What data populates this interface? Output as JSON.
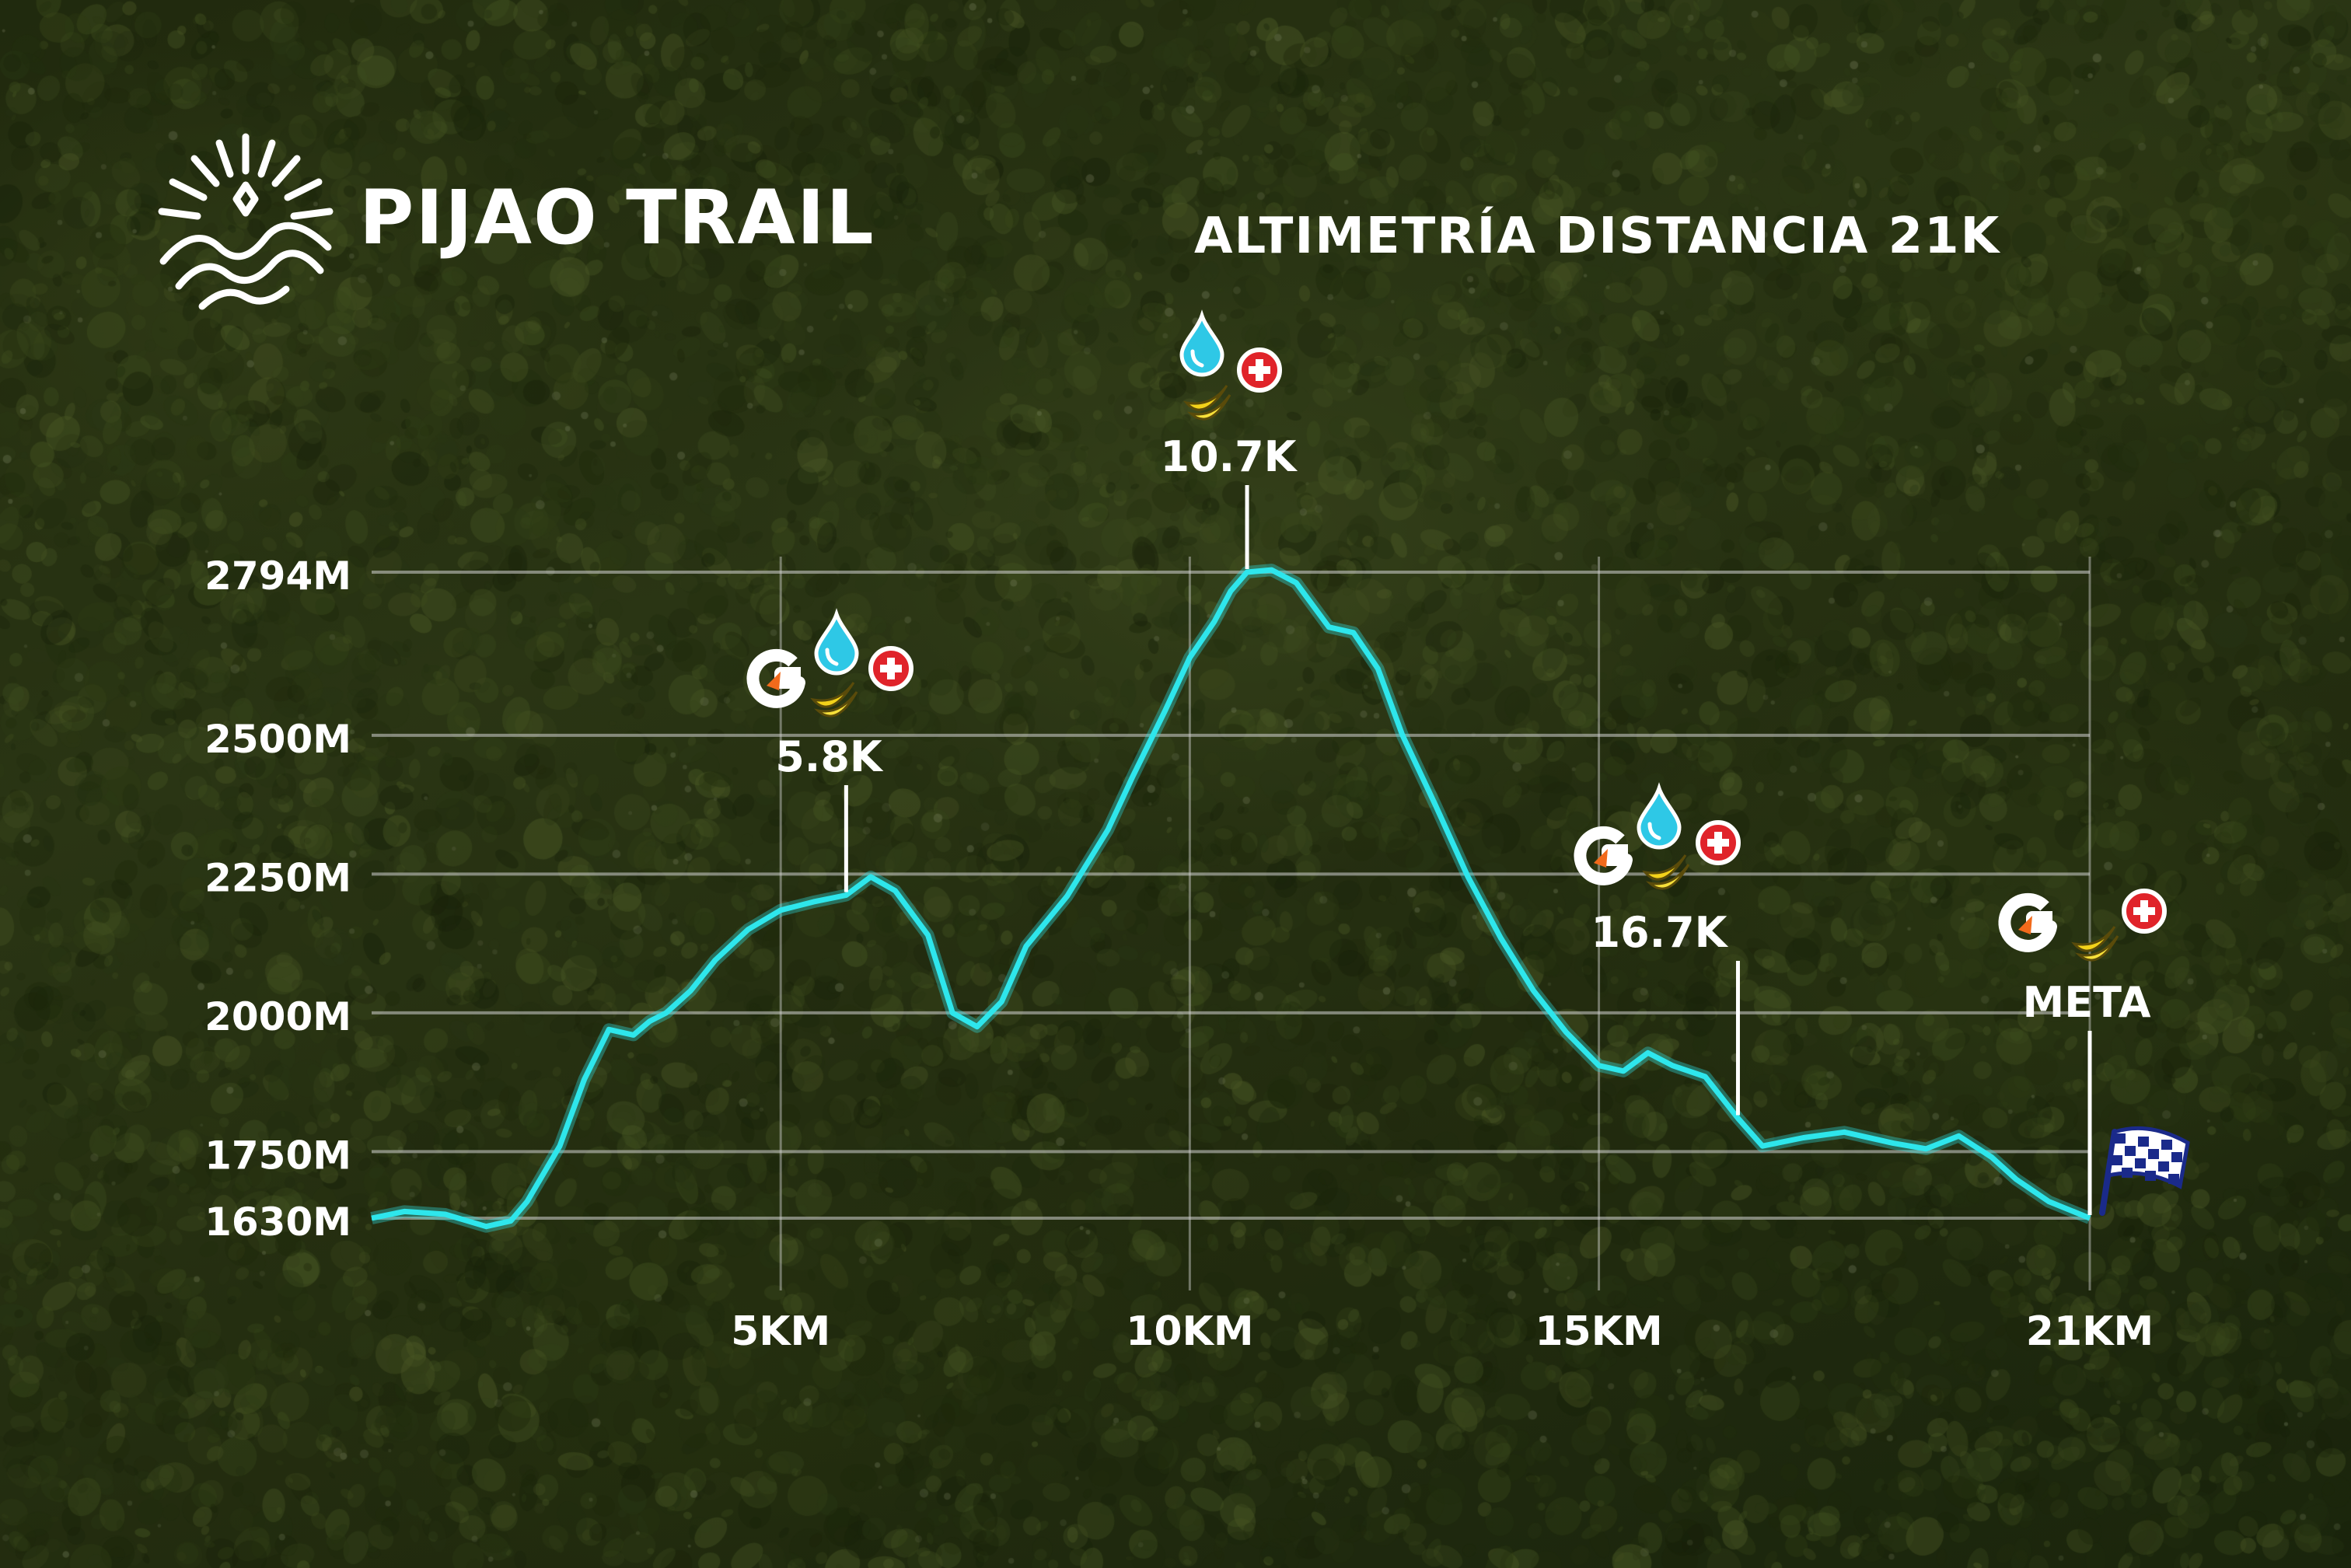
{
  "brand": {
    "name": "PIJAO TRAIL",
    "logo_icon": "sun-mountain-logo"
  },
  "chart_data": {
    "type": "area",
    "title": "ALTIMETRÍA DISTANCIA 21K",
    "x_unit": "km",
    "xlim": [
      0,
      21
    ],
    "ylim": [
      1630,
      2794
    ],
    "x_ticks": [
      5,
      10,
      15,
      21
    ],
    "x_tick_labels": [
      "5KM",
      "10KM",
      "15KM",
      "21KM"
    ],
    "y_ticks": [
      1630,
      1750,
      2000,
      2250,
      2500,
      2794
    ],
    "y_tick_labels": [
      "1630M",
      "1750M",
      "2000M",
      "2250M",
      "2500M",
      "2794M"
    ],
    "grid": true,
    "line_color": "#2ee6ec",
    "series": [
      {
        "x": [
          0,
          0.4,
          0.9,
          1.4,
          1.7,
          1.9,
          2.3,
          2.6,
          2.9,
          3.2,
          3.4,
          3.6,
          3.9,
          4.2,
          4.6,
          5.0,
          5.4,
          5.8,
          6.1,
          6.4,
          6.8,
          7.1,
          7.4,
          7.7,
          8.0,
          8.5,
          9.0,
          9.3,
          9.7,
          10.0,
          10.3,
          10.5,
          10.7,
          11.0,
          11.3,
          11.7,
          12.0,
          12.3,
          12.6,
          13.0,
          13.4,
          13.8,
          14.2,
          14.6,
          15.0,
          15.3,
          15.6,
          15.9,
          16.3,
          16.7,
          17.0,
          17.5,
          18.0,
          18.6,
          19.0,
          19.4,
          19.8,
          20.1,
          20.5,
          21.0
        ],
        "y": [
          1630,
          1642,
          1637,
          1615,
          1625,
          1660,
          1760,
          1880,
          1970,
          1960,
          1985,
          2000,
          2040,
          2095,
          2150,
          2185,
          2200,
          2212,
          2245,
          2220,
          2140,
          2000,
          1975,
          2020,
          2120,
          2210,
          2330,
          2425,
          2545,
          2640,
          2705,
          2760,
          2794,
          2798,
          2775,
          2695,
          2685,
          2620,
          2500,
          2375,
          2245,
          2135,
          2040,
          1965,
          1905,
          1895,
          1928,
          1905,
          1885,
          1810,
          1760,
          1775,
          1785,
          1765,
          1755,
          1778,
          1740,
          1700,
          1660,
          1630
        ]
      }
    ],
    "annotations": [
      {
        "x": 5.8,
        "label": "5.8K",
        "icons": [
          "gatorade-icon",
          "water-drop-icon",
          "banana-icon",
          "medical-cross-icon"
        ]
      },
      {
        "x": 10.7,
        "label": "10.7K",
        "icons": [
          "water-drop-icon",
          "banana-icon",
          "medical-cross-icon"
        ]
      },
      {
        "x": 16.7,
        "label": "16.7K",
        "icons": [
          "gatorade-icon",
          "water-drop-icon",
          "banana-icon",
          "medical-cross-icon"
        ]
      },
      {
        "x": 21,
        "label": "META",
        "icons": [
          "gatorade-icon",
          "banana-icon",
          "medical-cross-icon",
          "checkered-flag-icon"
        ]
      }
    ]
  }
}
